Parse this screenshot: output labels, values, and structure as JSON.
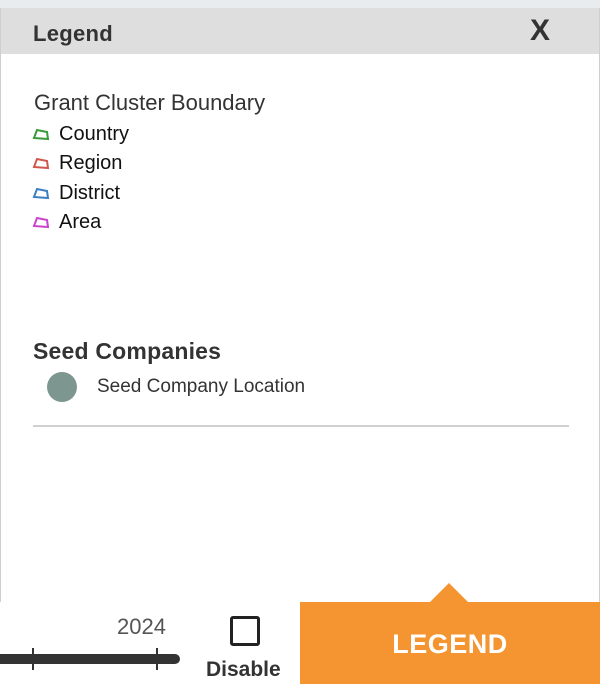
{
  "panel": {
    "title": "Legend",
    "close_label": "X"
  },
  "grant_cluster": {
    "title": "Grant Cluster Boundary",
    "items": [
      {
        "label": "Country",
        "color": "#3a9a3a",
        "icon": "polygon-outline-icon"
      },
      {
        "label": "Region",
        "color": "#d0574b",
        "icon": "polygon-outline-icon"
      },
      {
        "label": "District",
        "color": "#3a7fc2",
        "icon": "polygon-outline-icon"
      },
      {
        "label": "Area",
        "color": "#cc44cc",
        "icon": "polygon-outline-icon"
      }
    ]
  },
  "seed": {
    "title": "Seed Companies",
    "item_label": "Seed Company Location",
    "dot_color": "#7e9690"
  },
  "timeline": {
    "year": "2024",
    "disable_label": "Disable"
  },
  "legend_button": {
    "label": "LEGEND",
    "color": "#f49532"
  }
}
